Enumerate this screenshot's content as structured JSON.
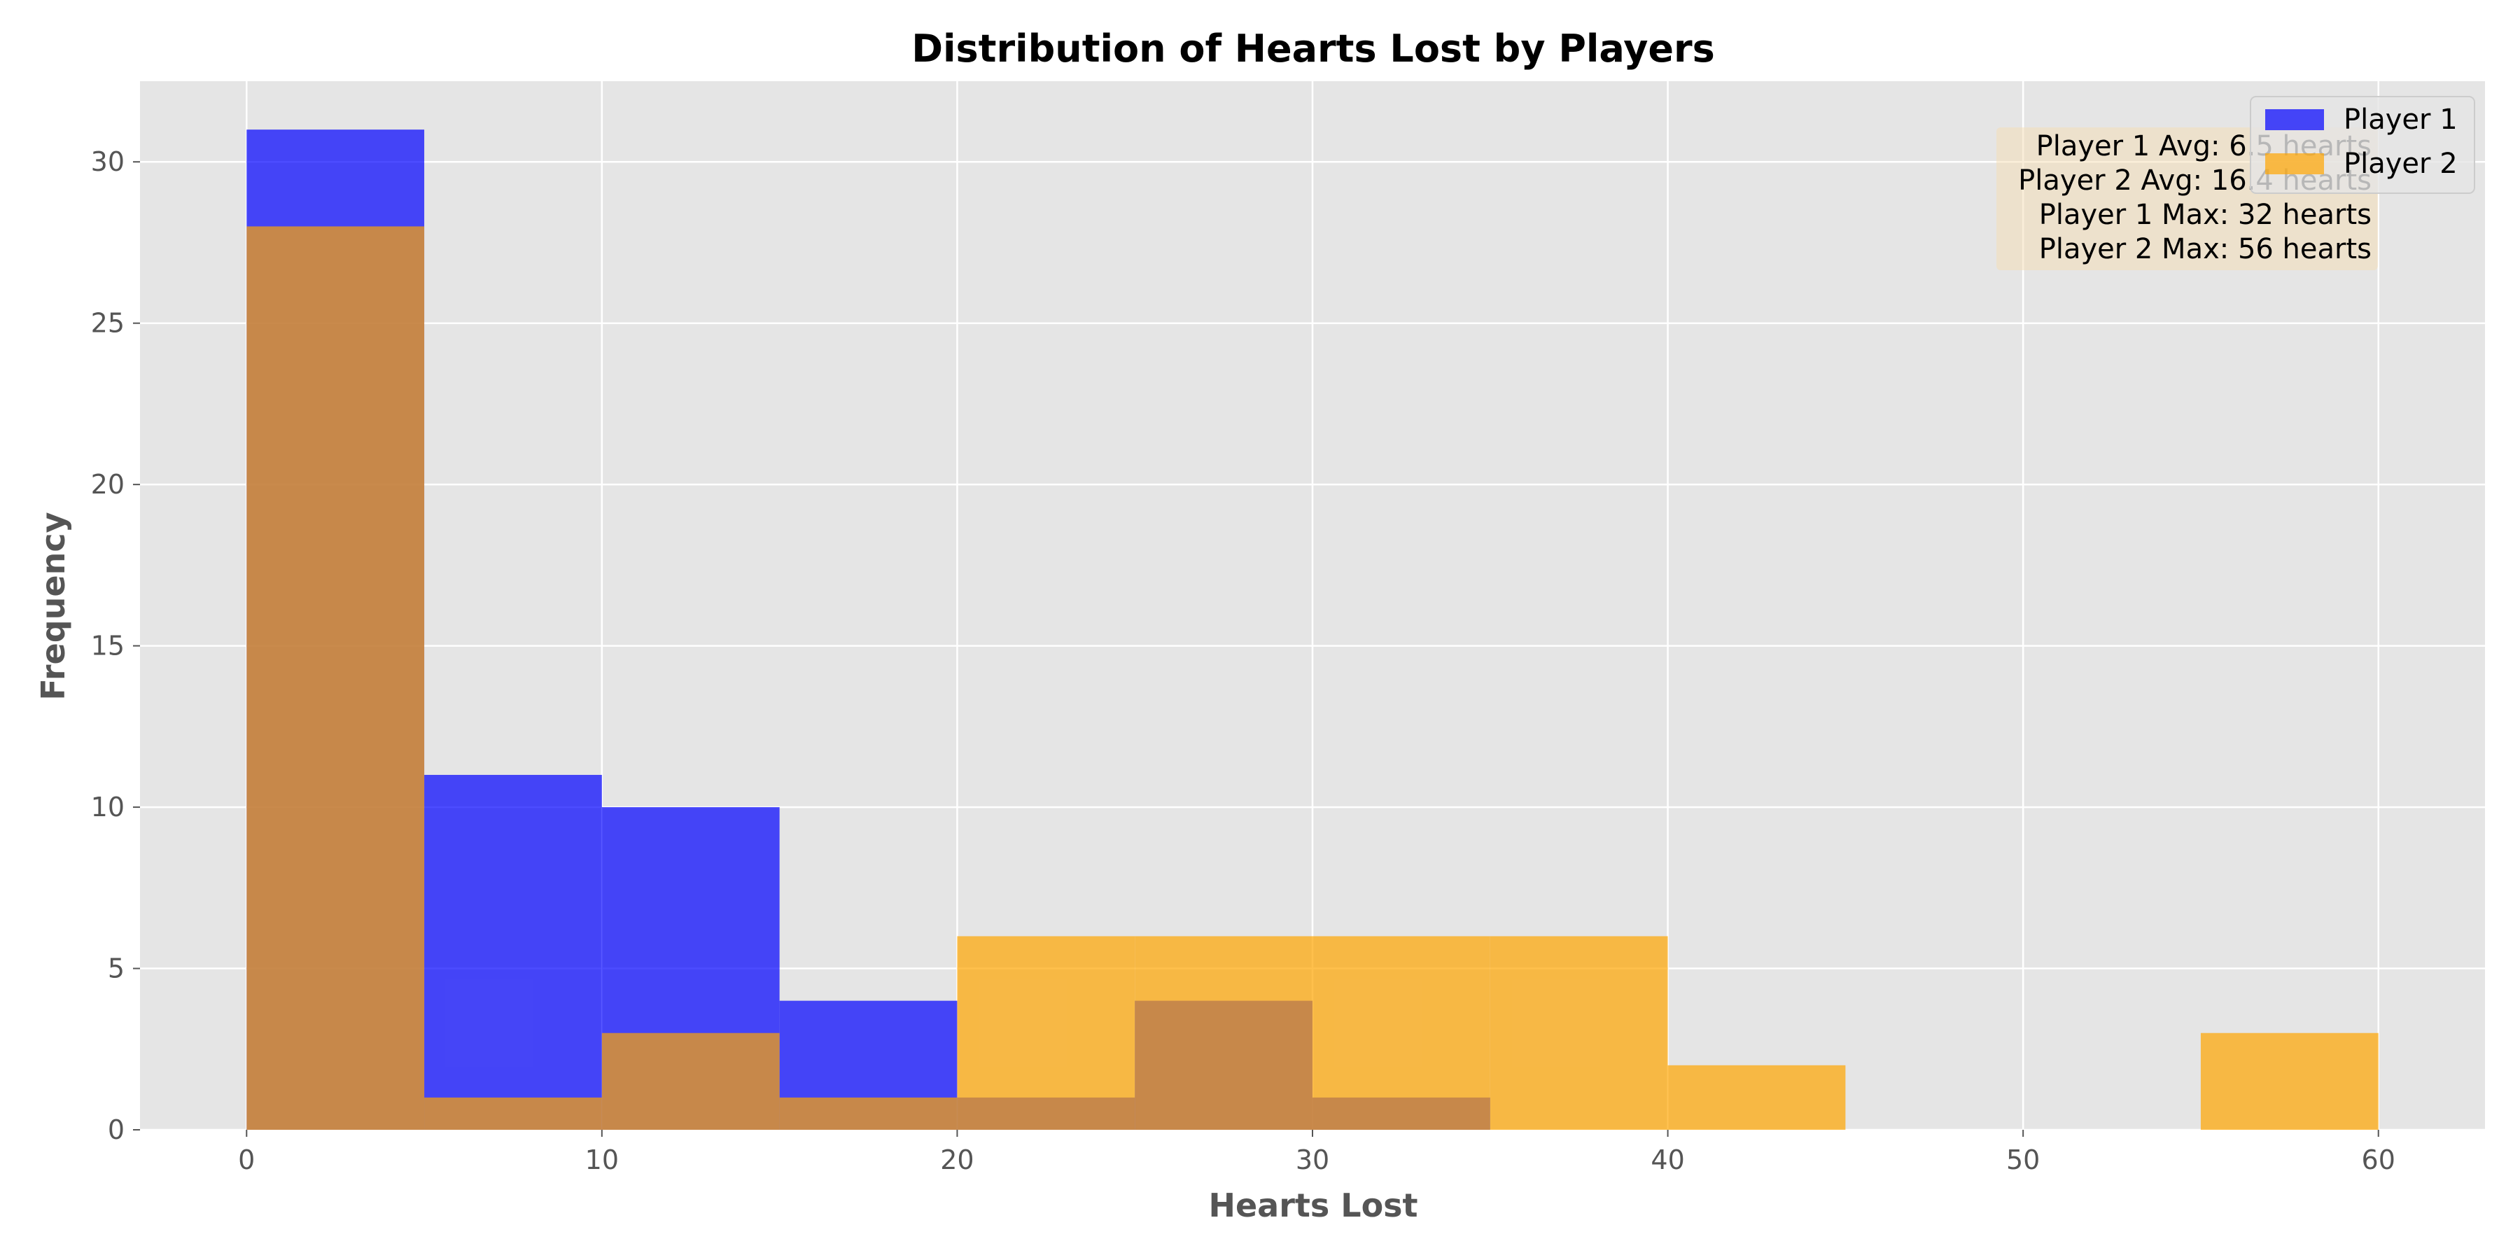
{
  "chart_data": {
    "type": "bar",
    "subtype": "overlapping histogram",
    "title": "Distribution of Hearts Lost by Players",
    "xlabel": "Hearts Lost",
    "ylabel": "Frequency",
    "xlim": [
      -3,
      63
    ],
    "ylim": [
      0,
      32.5
    ],
    "xticks": [
      0,
      10,
      20,
      30,
      40,
      50,
      60
    ],
    "yticks": [
      0,
      5,
      10,
      15,
      20,
      25,
      30
    ],
    "grid": true,
    "legend_position": "top-right",
    "series": [
      {
        "name": "Player 1",
        "color": "#0000ff",
        "opacity": 0.7,
        "bins": [
          {
            "x0": 0,
            "x1": 5,
            "count": 31
          },
          {
            "x0": 5,
            "x1": 10,
            "count": 11
          },
          {
            "x0": 10,
            "x1": 15,
            "count": 10
          },
          {
            "x0": 15,
            "x1": 20,
            "count": 4
          },
          {
            "x0": 20,
            "x1": 25,
            "count": 1
          },
          {
            "x0": 25,
            "x1": 30,
            "count": 4
          },
          {
            "x0": 30,
            "x1": 35,
            "count": 1
          }
        ]
      },
      {
        "name": "Player 2",
        "color": "#ffa500",
        "opacity": 0.7,
        "bins": [
          {
            "x0": 0,
            "x1": 5,
            "count": 28
          },
          {
            "x0": 5,
            "x1": 10,
            "count": 1
          },
          {
            "x0": 10,
            "x1": 15,
            "count": 3
          },
          {
            "x0": 15,
            "x1": 20,
            "count": 1
          },
          {
            "x0": 20,
            "x1": 25,
            "count": 6
          },
          {
            "x0": 25,
            "x1": 30,
            "count": 6
          },
          {
            "x0": 30,
            "x1": 35,
            "count": 6
          },
          {
            "x0": 35,
            "x1": 40,
            "count": 6
          },
          {
            "x0": 40,
            "x1": 45,
            "count": 2
          },
          {
            "x0": 45,
            "x1": 50,
            "count": 0
          },
          {
            "x0": 50,
            "x1": 55,
            "count": 0
          },
          {
            "x0": 55,
            "x1": 60,
            "count": 3
          }
        ]
      }
    ],
    "annotation_lines": [
      "Player 1 Avg: 6.5 hearts",
      "Player 2 Avg: 16.4 hearts",
      "Player 1 Max: 32 hearts",
      "Player 2 Max: 56 hearts"
    ],
    "colors": {
      "plot_background": "#e5e5e5",
      "grid": "#ffffff",
      "annotation_box": "#f5deb3"
    }
  }
}
